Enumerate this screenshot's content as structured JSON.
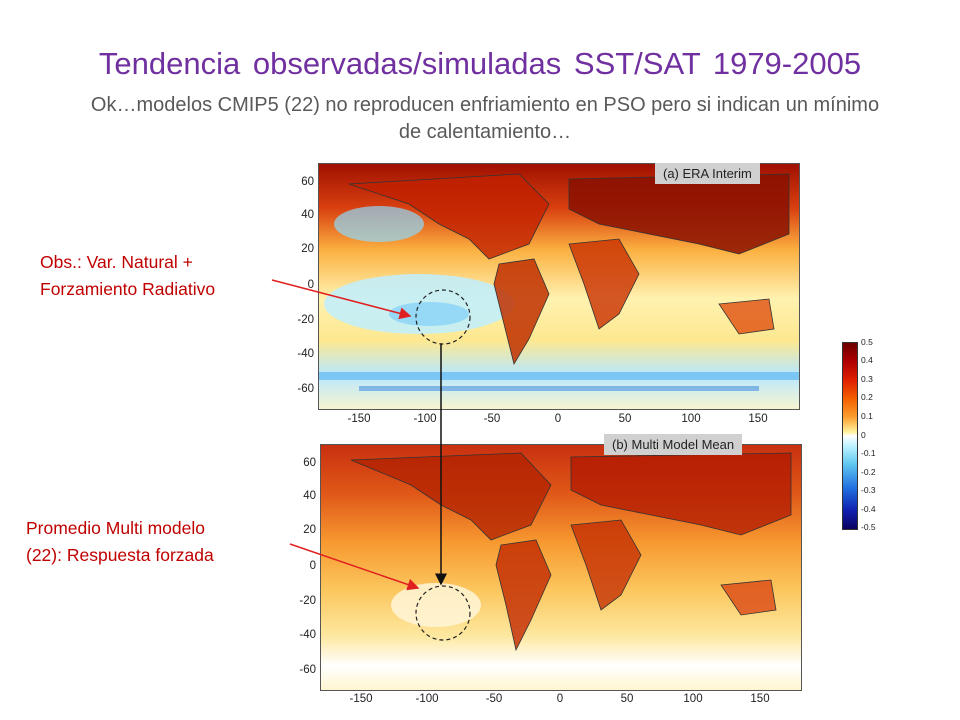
{
  "title": "Tendencia observadas/simuladas SST/SAT 1979-2005",
  "subtitle": "Ok…modelos CMIP5 (22) no reproducen enfriamiento en PSO pero si indican un mínimo de calentamiento…",
  "annotations": {
    "obs_line1": "Obs.: Var. Natural +",
    "obs_line2": "Forzamiento Radiativo",
    "model_line1": "Promedio Multi modelo",
    "model_line2": "(22): Respuesta forzada"
  },
  "panels": {
    "top_label": "(a) ERA Interim",
    "bottom_label": "(b) Multi Model Mean"
  },
  "axes": {
    "y_ticks": [
      "60",
      "40",
      "20",
      "0",
      "-20",
      "-40",
      "-60"
    ],
    "x_ticks": [
      "-150",
      "-100",
      "-50",
      "0",
      "50",
      "100",
      "150"
    ]
  },
  "colorbar": {
    "ticks": [
      "0.5",
      "0.4",
      "0.3",
      "0.2",
      "0.1",
      "0",
      "-0.1",
      "-0.2",
      "-0.3",
      "-0.4",
      "-0.5"
    ],
    "colors": {
      "max": "#6b0000",
      "high": "#e02000",
      "mid_warm": "#fba030",
      "zero": "#ffffff",
      "cool": "#60c8f0",
      "min": "#0a0060"
    }
  },
  "colors": {
    "title": "#7030a0",
    "subtitle": "#595959",
    "annotation": "#c00000"
  }
}
